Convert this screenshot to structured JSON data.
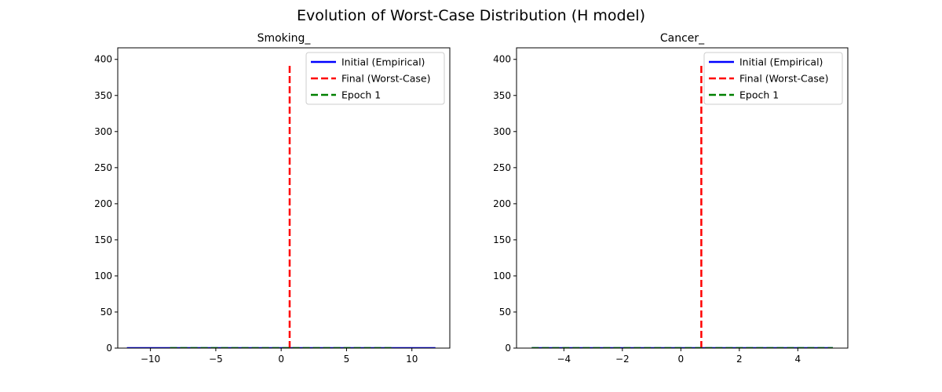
{
  "figure": {
    "suptitle": "Evolution of Worst-Case Distribution (H model)"
  },
  "chart_data": [
    {
      "type": "line",
      "title": "Smoking_",
      "xlabel": "",
      "ylabel": "",
      "xlim": [
        -12.5,
        12.9
      ],
      "ylim": [
        0,
        416
      ],
      "xticks": [
        -10,
        -5,
        0,
        5,
        10
      ],
      "yticks": [
        0,
        50,
        100,
        150,
        200,
        250,
        300,
        350,
        400
      ],
      "legend_position": "top-right",
      "series": [
        {
          "name": "Initial (Empirical)",
          "color": "#0000ff",
          "style": "solid",
          "x": [
            -11.8,
            11.8
          ],
          "y": [
            0,
            0
          ]
        },
        {
          "name": "Final (Worst-Case)",
          "color": "#ff0000",
          "style": "dashed",
          "x": [
            0.65,
            0.65
          ],
          "y": [
            0,
            395
          ]
        },
        {
          "name": "Epoch 1",
          "color": "#008000",
          "style": "dashed",
          "x": [
            -8.5,
            8.5
          ],
          "y": [
            0,
            0
          ]
        }
      ]
    },
    {
      "type": "line",
      "title": "Cancer_",
      "xlabel": "",
      "ylabel": "",
      "xlim": [
        -5.62,
        5.71
      ],
      "ylim": [
        0,
        416
      ],
      "xticks": [
        -4,
        -2,
        0,
        2,
        4
      ],
      "yticks": [
        0,
        50,
        100,
        150,
        200,
        250,
        300,
        350,
        400
      ],
      "legend_position": "top-right",
      "series": [
        {
          "name": "Initial (Empirical)",
          "color": "#0000ff",
          "style": "solid",
          "x": [
            -5.1,
            5.2
          ],
          "y": [
            0,
            0
          ]
        },
        {
          "name": "Final (Worst-Case)",
          "color": "#ff0000",
          "style": "dashed",
          "x": [
            0.7,
            0.7
          ],
          "y": [
            0,
            395
          ]
        },
        {
          "name": "Epoch 1",
          "color": "#008000",
          "style": "dashed",
          "x": [
            -5.1,
            5.2
          ],
          "y": [
            0,
            0
          ]
        }
      ]
    }
  ]
}
